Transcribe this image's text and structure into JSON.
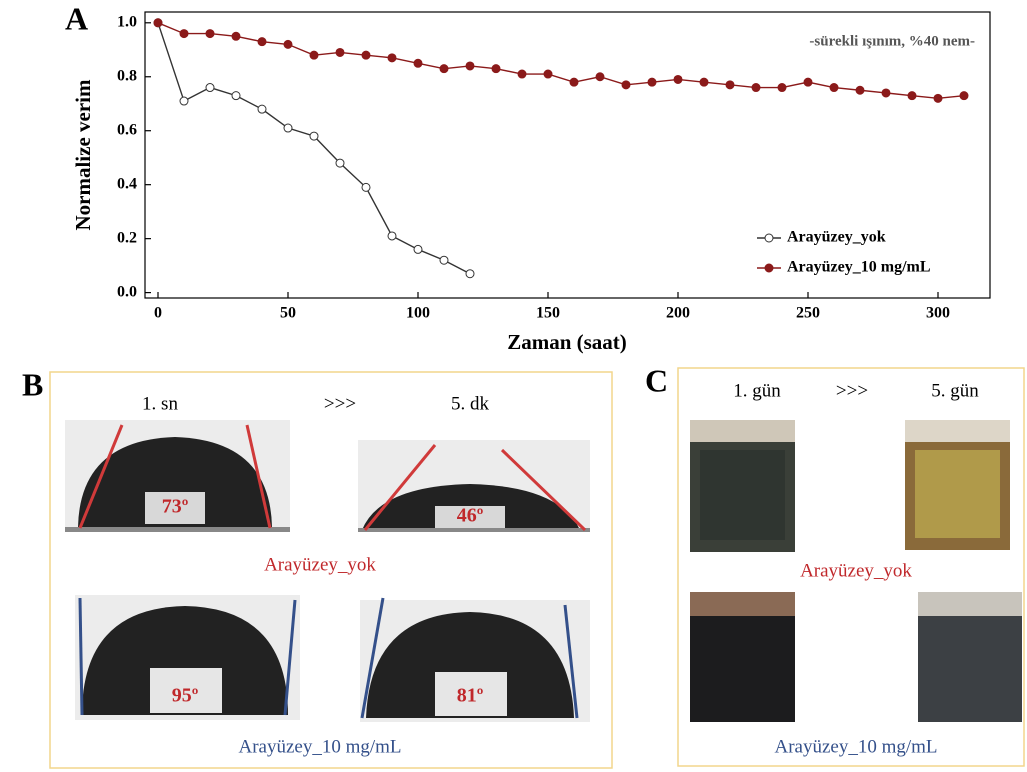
{
  "chart_data": {
    "type": "line",
    "letter": "A",
    "annotation": "-sürekli ışınım, %40 nem-",
    "x_label": "Zaman (saat)",
    "y_label": "Normalize verim",
    "x": [
      0,
      10,
      20,
      30,
      40,
      50,
      60,
      70,
      80,
      90,
      100,
      110,
      120,
      130,
      140,
      150,
      160,
      170,
      180,
      190,
      200,
      210,
      220,
      230,
      240,
      250,
      260,
      270,
      280,
      290,
      300,
      310
    ],
    "series": [
      {
        "name": "Arayüzey_yok",
        "color": "#333333",
        "marker_fill": "#ffffff",
        "values": [
          1.0,
          0.71,
          0.76,
          0.73,
          0.68,
          0.61,
          0.58,
          0.48,
          0.39,
          0.21,
          0.16,
          0.12,
          0.07,
          null,
          null,
          null,
          null,
          null,
          null,
          null,
          null,
          null,
          null,
          null,
          null,
          null,
          null,
          null,
          null,
          null,
          null,
          null
        ]
      },
      {
        "name": "Arayüzey_10 mg/mL",
        "color": "#8b1a1a",
        "marker_fill": "#8b1a1a",
        "values": [
          1.0,
          0.96,
          0.96,
          0.95,
          0.93,
          0.92,
          0.88,
          0.89,
          0.88,
          0.87,
          0.85,
          0.83,
          0.84,
          0.83,
          0.81,
          0.81,
          0.78,
          0.8,
          0.77,
          0.78,
          0.79,
          0.78,
          0.77,
          0.76,
          0.76,
          0.78,
          0.76,
          0.75,
          0.74,
          0.73,
          0.72,
          0.73
        ]
      }
    ],
    "xlim": [
      -5,
      320
    ],
    "ylim": [
      -0.02,
      1.04
    ],
    "xticks": [
      0,
      50,
      100,
      150,
      200,
      250,
      300
    ],
    "yticks": [
      {
        "value": 0,
        "label": "0.0"
      },
      0.2,
      0.4,
      0.6,
      0.8,
      {
        "value": 1,
        "label": "1.0"
      }
    ],
    "legend": "lower right"
  },
  "panels": {
    "B": {
      "letter": "B",
      "top": [
        "1. sn",
        ">>>",
        "5. dk"
      ],
      "angles": [
        "73º",
        "46º",
        "95º",
        "81º"
      ],
      "labels": [
        "Arayüzey_yok",
        "Arayüzey_10  mg/mL"
      ]
    },
    "C": {
      "letter": "C",
      "top": [
        "1. gün",
        ">>>",
        "5. gün"
      ],
      "labels": [
        "Arayüzey_yok",
        "Arayüzey_10  mg/mL"
      ]
    }
  }
}
